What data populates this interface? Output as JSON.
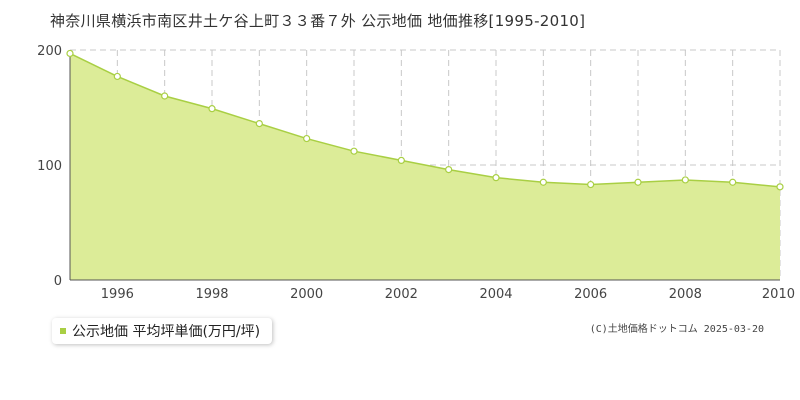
{
  "chart_data": {
    "type": "area",
    "title": "神奈川県横浜市南区井土ケ谷上町３３番７外 公示地価 地価推移[1995-2010]",
    "xlabel": "",
    "ylabel": "",
    "x": [
      1995,
      1996,
      1997,
      1998,
      1999,
      2000,
      2001,
      2002,
      2003,
      2004,
      2005,
      2006,
      2007,
      2008,
      2009,
      2010
    ],
    "series": [
      {
        "name": "公示地価 平均坪単価(万円/坪)",
        "values": [
          197,
          177,
          160,
          149,
          136,
          123,
          112,
          104,
          96,
          89,
          85,
          83,
          85,
          87,
          85,
          81
        ]
      }
    ],
    "x_tick_labels": [
      "1996",
      "1998",
      "2000",
      "2002",
      "2004",
      "2006",
      "2008",
      "2010"
    ],
    "y_tick_labels": [
      "0",
      "100",
      "200"
    ],
    "xlim": [
      1995,
      2010
    ],
    "ylim": [
      0,
      200
    ],
    "grid": true,
    "legend_position": "bottom-left",
    "colors": {
      "fill": "#dcec98",
      "line": "#a9cf44",
      "marker_fill": "#ffffff",
      "grid": "#c8c8c8",
      "axis": "#555555"
    }
  },
  "copyright": "(C)土地価格ドットコム 2025-03-20"
}
